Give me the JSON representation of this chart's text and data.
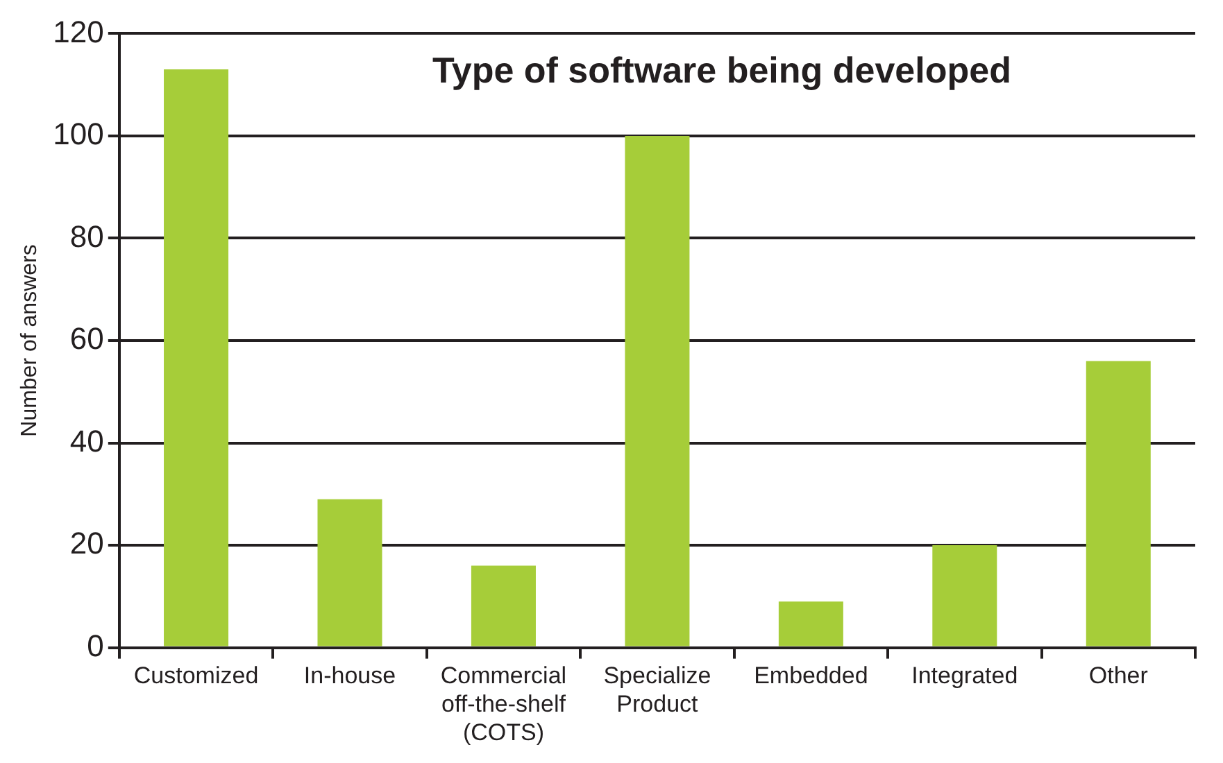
{
  "chart_data": {
    "type": "bar",
    "title": "Type of software being developed",
    "ylabel": "Number of answers",
    "categories": [
      "Customized",
      "In-house",
      "Commercial off-the-shelf (COTS)",
      "Specialize Product",
      "Embedded",
      "Integrated",
      "Other"
    ],
    "values": [
      113,
      29,
      16,
      100,
      9,
      20,
      56
    ],
    "color": "#a6cd39",
    "ylim": [
      0,
      120
    ],
    "yticks": [
      0,
      20,
      40,
      60,
      80,
      100,
      120
    ],
    "grid": "y",
    "legend": false
  }
}
